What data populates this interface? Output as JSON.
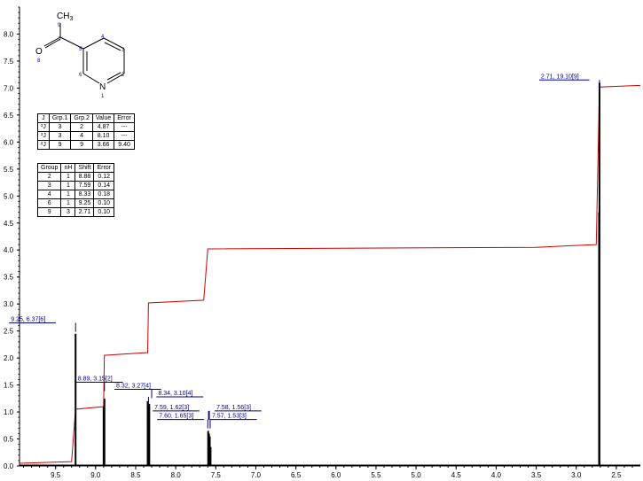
{
  "chart_data": {
    "type": "line",
    "title": "",
    "xlabel": "",
    "ylabel": "",
    "xlim": [
      9.95,
      2.2
    ],
    "ylim": [
      0,
      8.5
    ],
    "x_ticks": [
      "9.5",
      "9.0",
      "8.5",
      "8.0",
      "7.5",
      "7.0",
      "6.5",
      "6.0",
      "5.5",
      "5.0",
      "4.5",
      "4.0",
      "3.5",
      "3.0",
      "2.5"
    ],
    "y_ticks": [
      "0.0",
      "0.5",
      "1.0",
      "1.5",
      "2.0",
      "2.5",
      "3.0",
      "3.5",
      "4.0",
      "4.5",
      "5.0",
      "5.5",
      "6.0",
      "6.5",
      "7.0",
      "7.5",
      "8.0"
    ],
    "colors": {
      "spectrum": "#000000",
      "integral": "#cc0000",
      "label": "#00008b",
      "atom_number": "#0000cc"
    },
    "series": [
      {
        "kind": "spectrum",
        "peaks": [
          {
            "x": 9.25,
            "y": 2.45
          },
          {
            "x": 8.89,
            "y": 1.25
          },
          {
            "x": 8.9,
            "y": 1.1
          },
          {
            "x": 8.35,
            "y": 1.2
          },
          {
            "x": 8.33,
            "y": 1.15
          },
          {
            "x": 7.595,
            "y": 0.65
          },
          {
            "x": 7.585,
            "y": 0.6
          },
          {
            "x": 7.575,
            "y": 0.55
          },
          {
            "x": 7.565,
            "y": 0.35
          },
          {
            "x": 2.71,
            "y": 7.1
          },
          {
            "x": 2.715,
            "y": 4.7
          }
        ]
      },
      {
        "kind": "integral",
        "points": [
          [
            9.95,
            0.05
          ],
          [
            9.3,
            0.08
          ],
          [
            9.25,
            1.05
          ],
          [
            8.9,
            1.1
          ],
          [
            8.89,
            2.05
          ],
          [
            8.35,
            2.1
          ],
          [
            8.34,
            3.02
          ],
          [
            7.65,
            3.07
          ],
          [
            7.6,
            4.02
          ],
          [
            3.5,
            4.05
          ],
          [
            2.75,
            4.1
          ],
          [
            2.71,
            7.02
          ],
          [
            2.2,
            7.05
          ]
        ]
      }
    ],
    "peak_labels": [
      {
        "text": "9.25, 6.37[6]",
        "x": 9.25,
        "y": 2.65
      },
      {
        "text": "8.89, 3.15[2]",
        "x": 8.89,
        "y": 1.55
      },
      {
        "text": "8.32, 3.27[4]",
        "x": 8.3,
        "y": 1.42
      },
      {
        "text": "8.34, 3.10[4]",
        "x": 8.34,
        "y": 1.28
      },
      {
        "text": "7.59, 1.62[3]",
        "x": 7.59,
        "y": 1.02
      },
      {
        "text": "7.58, 1.56[3]",
        "x": 7.58,
        "y": 1.02
      },
      {
        "text": "7.60, 1.65[3]",
        "x": 7.6,
        "y": 0.86
      },
      {
        "text": "7.57, 1.53[3]",
        "x": 7.57,
        "y": 0.86
      },
      {
        "text": "2.71, 19.10[9]",
        "x": 2.71,
        "y": 7.15
      }
    ]
  },
  "molecule": {
    "atoms": [
      {
        "id": "ch3",
        "text": "CH",
        "sub": "3"
      },
      {
        "id": "o",
        "text": "O"
      },
      {
        "id": "n",
        "text": "N"
      }
    ],
    "numbers": [
      "9",
      "7",
      "8",
      "5",
      "4",
      "3",
      "2",
      "6",
      "1"
    ]
  },
  "j_table": {
    "headers": [
      "J",
      "Grp.1",
      "Grp.2",
      "Value",
      "Error"
    ],
    "rows": [
      [
        "³J",
        "3",
        "2",
        "4.87",
        "---"
      ],
      [
        "³J",
        "3",
        "4",
        "8.10",
        "---"
      ],
      [
        "²J",
        "9",
        "9",
        "3.66",
        "9.40"
      ]
    ]
  },
  "shift_table": {
    "headers": [
      "Group",
      "nH",
      "Shift",
      "Error"
    ],
    "rows": [
      [
        "2",
        "1",
        "8.88",
        "0.12"
      ],
      [
        "3",
        "1",
        "7.59",
        "0.14"
      ],
      [
        "4",
        "1",
        "8.33",
        "0.18"
      ],
      [
        "6",
        "1",
        "9.25",
        "0.10"
      ],
      [
        "9",
        "3",
        "2.71",
        "0.10"
      ]
    ]
  }
}
